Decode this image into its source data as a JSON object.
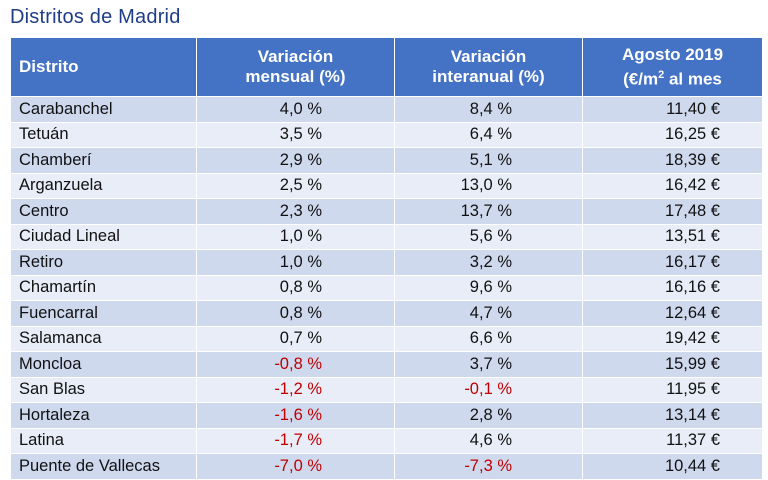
{
  "title": "Distritos de Madrid",
  "headers": {
    "distrito": "Distrito",
    "mensual_l1": "Variación",
    "mensual_l2": "mensual (%)",
    "interanual_l1": "Variación",
    "interanual_l2": "interanual (%)",
    "agosto_l1": "Agosto 2019",
    "agosto_l2a": "(€/m",
    "agosto_sup": "2",
    "agosto_l2b": " al mes"
  },
  "colors": {
    "header_bg": "#4472c4",
    "row_odd": "#cfd9ee",
    "row_even": "#e8edf7",
    "negative": "#c00000",
    "title": "#1f3c88"
  },
  "rows": [
    {
      "distrito": "Carabanchel",
      "mensual": "4,0 %",
      "interanual": "8,4 %",
      "precio": "11,40 €"
    },
    {
      "distrito": "Tetuán",
      "mensual": "3,5 %",
      "interanual": "6,4 %",
      "precio": "16,25 €"
    },
    {
      "distrito": "Chamberí",
      "mensual": "2,9 %",
      "interanual": "5,1 %",
      "precio": "18,39 €"
    },
    {
      "distrito": "Arganzuela",
      "mensual": "2,5 %",
      "interanual": "13,0 %",
      "precio": "16,42 €"
    },
    {
      "distrito": "Centro",
      "mensual": "2,3 %",
      "interanual": "13,7 %",
      "precio": "17,48 €"
    },
    {
      "distrito": "Ciudad Lineal",
      "mensual": "1,0 %",
      "interanual": "5,6 %",
      "precio": "13,51 €"
    },
    {
      "distrito": "Retiro",
      "mensual": "1,0 %",
      "interanual": "3,2 %",
      "precio": "16,17 €"
    },
    {
      "distrito": "Chamartín",
      "mensual": "0,8 %",
      "interanual": "9,6 %",
      "precio": "16,16 €"
    },
    {
      "distrito": "Fuencarral",
      "mensual": "0,8 %",
      "interanual": "4,7 %",
      "precio": "12,64 €"
    },
    {
      "distrito": "Salamanca",
      "mensual": "0,7 %",
      "interanual": "6,6 %",
      "precio": "19,42 €"
    },
    {
      "distrito": "Moncloa",
      "mensual": "-0,8 %",
      "interanual": "3,7 %",
      "precio": "15,99 €"
    },
    {
      "distrito": "San Blas",
      "mensual": "-1,2 %",
      "interanual": "-0,1 %",
      "precio": "11,95 €"
    },
    {
      "distrito": "Hortaleza",
      "mensual": "-1,6 %",
      "interanual": "2,8 %",
      "precio": "13,14 €"
    },
    {
      "distrito": "Latina",
      "mensual": "-1,7 %",
      "interanual": "4,6 %",
      "precio": "11,37 €"
    },
    {
      "distrito": "Puente de Vallecas",
      "mensual": "-7,0 %",
      "interanual": "-7,3 %",
      "precio": "10,44 €"
    }
  ]
}
